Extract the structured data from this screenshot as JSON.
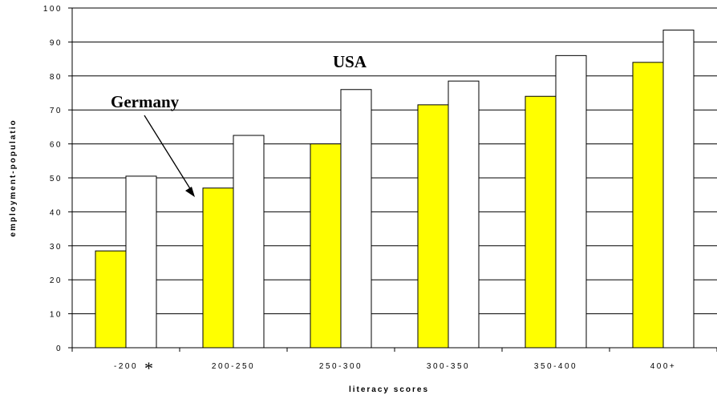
{
  "chart_data": {
    "type": "bar",
    "categories": [
      "-200",
      "200-250",
      "250-300",
      "300-350",
      "350-400",
      "400+"
    ],
    "series": [
      {
        "name": "Germany",
        "values": [
          28.5,
          47,
          60,
          71.5,
          74,
          84
        ],
        "color": "#ffff00"
      },
      {
        "name": "USA",
        "values": [
          50.5,
          62.5,
          76,
          78.5,
          86,
          93.5
        ],
        "color": "#ffffff"
      }
    ],
    "xlabel": "literacy scores",
    "ylabel": "employment-populatio",
    "ylim": [
      0,
      100
    ],
    "yticks": [
      "0",
      "10",
      "20",
      "30",
      "40",
      "50",
      "60",
      "70",
      "80",
      "90",
      "100"
    ],
    "grid": "horizontal",
    "annotations": {
      "germany": "Germany",
      "usa": "USA",
      "marker": "*"
    }
  }
}
